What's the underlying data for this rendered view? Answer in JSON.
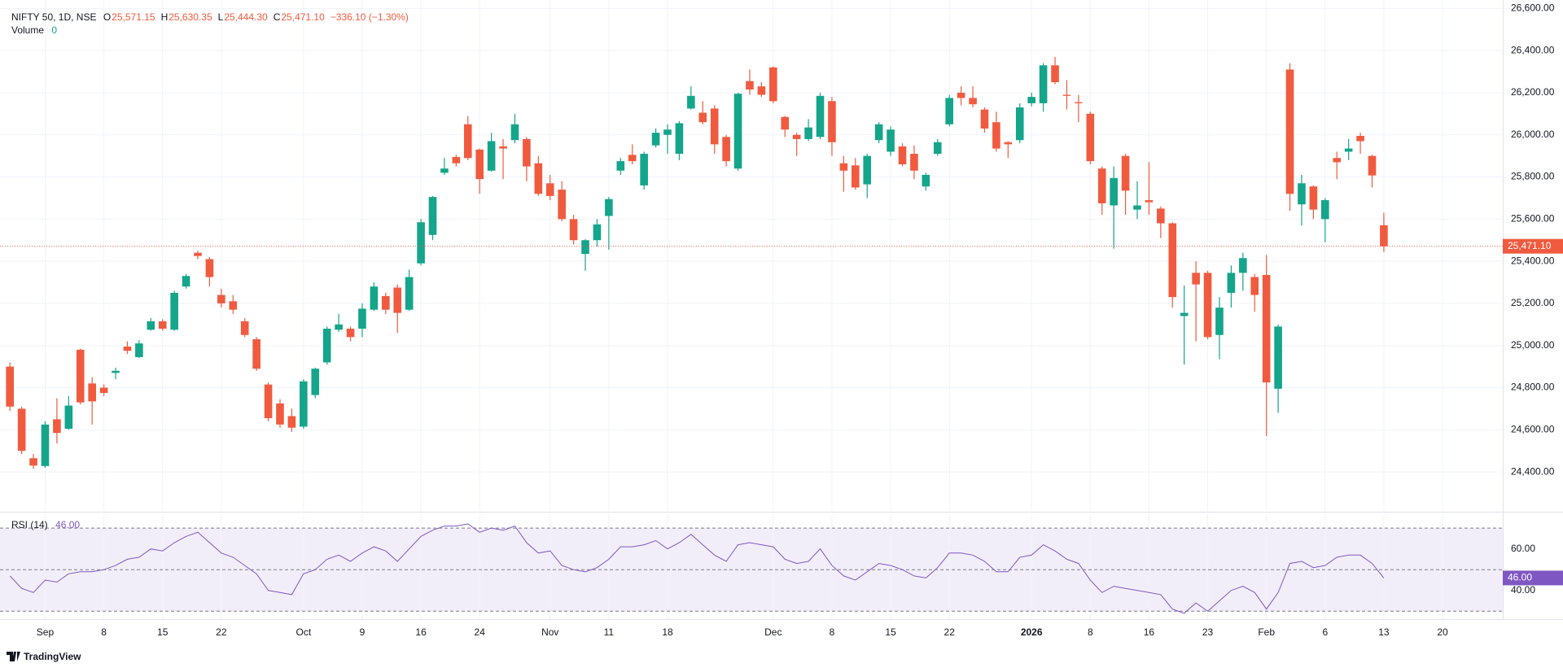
{
  "chart_data": [
    {
      "type": "candlestick",
      "legend": {
        "symbol": "NIFTY 50, 1D, NSE",
        "keys": [
          "O",
          "H",
          "L",
          "C"
        ],
        "values": [
          "25,571.15",
          "25,630.35",
          "25,444.30",
          "25,471.10"
        ],
        "change": "−336.10 (−1.30%)"
      },
      "volume": {
        "name": "Volume",
        "value": "0"
      },
      "up_color": "#14a58b",
      "down_color": "#f05b3f",
      "ylim": [
        24215,
        26640
      ],
      "yticks": [
        {
          "value": 24400,
          "label": "24,400.00"
        },
        {
          "value": 24600,
          "label": "24,600.00"
        },
        {
          "value": 24800,
          "label": "24,800.00"
        },
        {
          "value": 25000,
          "label": "25,000.00"
        },
        {
          "value": 25200,
          "label": "25,200.00"
        },
        {
          "value": 25400,
          "label": "25,400.00"
        },
        {
          "value": 25600,
          "label": "25,600.00"
        },
        {
          "value": 25800,
          "label": "25,800.00"
        },
        {
          "value": 26000,
          "label": "26,000.00"
        },
        {
          "value": 26200,
          "label": "26,200.00"
        },
        {
          "value": 26400,
          "label": "26,400.00"
        },
        {
          "value": 26600,
          "label": "26,600.00"
        }
      ],
      "grid": true,
      "price_line": true,
      "categories": [
        null,
        null,
        null,
        "Sep",
        null,
        null,
        null,
        null,
        "8",
        null,
        null,
        null,
        null,
        "15",
        null,
        null,
        null,
        null,
        "22",
        null,
        null,
        null,
        null,
        null,
        null,
        "Oct",
        null,
        null,
        null,
        null,
        "9",
        null,
        null,
        null,
        null,
        "16",
        null,
        null,
        null,
        null,
        "24",
        null,
        null,
        null,
        null,
        null,
        "Nov",
        null,
        null,
        null,
        null,
        "11",
        null,
        null,
        null,
        null,
        "18",
        null,
        null,
        null,
        null,
        null,
        null,
        null,
        null,
        "Dec",
        null,
        null,
        null,
        null,
        "8",
        null,
        null,
        null,
        null,
        "15",
        null,
        null,
        null,
        null,
        "22",
        null,
        null,
        null,
        null,
        null,
        null,
        "2026",
        null,
        null,
        null,
        null,
        "8",
        null,
        null,
        null,
        null,
        "16",
        null,
        null,
        null,
        null,
        "23",
        null,
        null,
        null,
        null,
        "Feb",
        null,
        null,
        null,
        null,
        "6",
        null,
        null,
        null,
        null,
        "13",
        null,
        null,
        null,
        null,
        "20",
        null,
        null,
        null,
        null
      ],
      "open": [
        24900,
        24700,
        24465,
        24428,
        24650,
        24605,
        24980,
        24820,
        24800,
        24870,
        24995,
        24945,
        25075,
        25115,
        25075,
        25280,
        25440,
        25410,
        25240,
        25210,
        25115,
        25030,
        24815,
        24725,
        24665,
        24615,
        24765,
        24920,
        25075,
        25080,
        25080,
        25170,
        25235,
        25275,
        25170,
        25390,
        25525,
        25820,
        25895,
        26050,
        25930,
        25830,
        25945,
        25975,
        25980,
        25865,
        25770,
        25740,
        25600,
        25435,
        25500,
        25615,
        25830,
        25905,
        25760,
        25950,
        26000,
        25910,
        26125,
        26105,
        26125,
        25990,
        25840,
        26255,
        26230,
        26320,
        26085,
        26000,
        25980,
        25990,
        26160,
        25865,
        25855,
        25765,
        25975,
        25920,
        25945,
        25910,
        25755,
        25910,
        26050,
        26200,
        26175,
        26120,
        26060,
        25965,
        25975,
        26150,
        26150,
        26330,
        26190,
        26155,
        26100,
        25840,
        25665,
        25900,
        25645,
        25690,
        25650,
        25580,
        25140,
        25345,
        25345,
        25050,
        25250,
        25345,
        25325,
        25335,
        24795,
        26310,
        25670,
        25755,
        25600,
        25890,
        25920,
        25995,
        25900,
        25571.15,
        null,
        null,
        null,
        null,
        null,
        null,
        null,
        null,
        null
      ],
      "high": [
        24920,
        24710,
        24485,
        24640,
        24750,
        24760,
        24985,
        24850,
        24815,
        24895,
        25020,
        25025,
        25130,
        25125,
        25260,
        25340,
        25450,
        25420,
        25270,
        25240,
        25130,
        25040,
        24825,
        24745,
        24700,
        24840,
        24895,
        25090,
        25150,
        25090,
        25200,
        25300,
        25250,
        25290,
        25360,
        25600,
        25710,
        25890,
        25905,
        26090,
        25935,
        26010,
        25980,
        26100,
        25990,
        25900,
        25810,
        25780,
        25620,
        25505,
        25600,
        25705,
        25890,
        25955,
        25920,
        26030,
        26050,
        26065,
        26230,
        26160,
        26140,
        26000,
        26200,
        26310,
        26250,
        26325,
        26090,
        26010,
        26075,
        26200,
        26180,
        25900,
        25890,
        25910,
        26060,
        26040,
        25960,
        25950,
        25820,
        25980,
        26190,
        26230,
        26230,
        26130,
        26110,
        25970,
        26150,
        26200,
        26340,
        26370,
        26260,
        26190,
        26110,
        25850,
        25850,
        25910,
        25780,
        25870,
        25660,
        25585,
        25285,
        25400,
        25355,
        25230,
        25380,
        25440,
        25340,
        25430,
        25100,
        26340,
        25810,
        25760,
        25700,
        25920,
        25980,
        26010,
        25905,
        25630.35,
        null,
        null,
        null,
        null,
        null,
        null,
        null,
        null,
        null
      ],
      "low": [
        24690,
        24485,
        24415,
        24420,
        24535,
        24600,
        24720,
        24625,
        24760,
        24840,
        24960,
        24940,
        25070,
        25070,
        25070,
        25270,
        25410,
        25280,
        25180,
        25150,
        25040,
        24880,
        24640,
        24610,
        24590,
        24605,
        24750,
        24910,
        25065,
        25020,
        25040,
        25165,
        25150,
        25060,
        25165,
        25380,
        25500,
        25810,
        25850,
        25880,
        25720,
        25825,
        25790,
        25960,
        25780,
        25710,
        25690,
        25590,
        25480,
        25355,
        25470,
        25455,
        25810,
        25860,
        25740,
        25940,
        25910,
        25880,
        26120,
        26050,
        25910,
        25850,
        25830,
        26190,
        26180,
        26150,
        25990,
        25900,
        25970,
        25980,
        25900,
        25730,
        25740,
        25700,
        25960,
        25900,
        25850,
        25790,
        25735,
        25900,
        26040,
        26140,
        26130,
        26010,
        25920,
        25890,
        25960,
        26135,
        26110,
        26240,
        26120,
        26060,
        25860,
        25620,
        25460,
        25620,
        25600,
        25620,
        25510,
        25180,
        24910,
        25020,
        25030,
        24935,
        25180,
        25260,
        25160,
        24570,
        24680,
        25640,
        25570,
        25600,
        25490,
        25790,
        25880,
        25910,
        25750,
        25444.3,
        null,
        null,
        null,
        null,
        null,
        null,
        null,
        null,
        null
      ],
      "close": [
        24710,
        24500,
        24430,
        24625,
        24585,
        24715,
        24730,
        24735,
        24775,
        24880,
        24975,
        25010,
        25115,
        25080,
        25250,
        25330,
        25425,
        25325,
        25200,
        25170,
        25050,
        24890,
        24655,
        24625,
        24610,
        24830,
        24890,
        25080,
        25100,
        25040,
        25175,
        25280,
        25170,
        25155,
        25325,
        25585,
        25705,
        25840,
        25865,
        25890,
        25790,
        25970,
        25935,
        26050,
        25850,
        25720,
        25710,
        25600,
        25500,
        25500,
        25575,
        25695,
        25875,
        25875,
        25910,
        26010,
        26025,
        26055,
        26185,
        26060,
        25955,
        25875,
        26195,
        26215,
        26190,
        26160,
        26025,
        25980,
        26035,
        26185,
        25965,
        25830,
        25750,
        25900,
        26050,
        26025,
        25860,
        25830,
        25810,
        25965,
        26175,
        26175,
        26145,
        26030,
        25935,
        25955,
        26130,
        26180,
        26330,
        26250,
        26185,
        26150,
        25875,
        25675,
        25795,
        25735,
        25665,
        25680,
        25580,
        25230,
        25155,
        25290,
        25040,
        25180,
        25345,
        25415,
        25240,
        24825,
        25090,
        25720,
        25770,
        25645,
        25690,
        25870,
        25935,
        25970,
        25807.2,
        25471.1,
        null,
        null,
        null,
        null,
        null,
        null,
        null,
        null,
        null
      ]
    },
    {
      "type": "line",
      "name": "RSI (14)",
      "last_label": "46.00",
      "color": "#7e57c2",
      "band_color": "rgba(126,87,194,0.1)",
      "ylim": [
        26.2,
        77.1
      ],
      "yticks": [
        {
          "value": 60,
          "label": "60.00"
        },
        {
          "value": 40,
          "label": "40.00"
        }
      ],
      "levels": [
        70,
        50,
        30
      ],
      "values": [
        47,
        41,
        39,
        45,
        44,
        48,
        49,
        49,
        50,
        52,
        55,
        56,
        60,
        59,
        63,
        66,
        68,
        63,
        58,
        56,
        52,
        48,
        40,
        39,
        38,
        48,
        50,
        55,
        57,
        54,
        58,
        61,
        59,
        54,
        60,
        66,
        69,
        71,
        71,
        72,
        68,
        70,
        69,
        71,
        63,
        58,
        59,
        52,
        50,
        49,
        51,
        55,
        61,
        61,
        62,
        64,
        60,
        63,
        67,
        62,
        57,
        54,
        62,
        63,
        62,
        61,
        55,
        53,
        54,
        60,
        52,
        47,
        45,
        49,
        53,
        52,
        50,
        47,
        46,
        51,
        58,
        58,
        57,
        54,
        49,
        49,
        56,
        57,
        62,
        59,
        55,
        53,
        45,
        39,
        42,
        41,
        40,
        39,
        38,
        31,
        29,
        34,
        30,
        35,
        40,
        42,
        39,
        31,
        39,
        53,
        54,
        51,
        52,
        56,
        57,
        57,
        53,
        46,
        null,
        null,
        null,
        null,
        null,
        null,
        null,
        null,
        null
      ]
    }
  ],
  "branding": "TradingView"
}
